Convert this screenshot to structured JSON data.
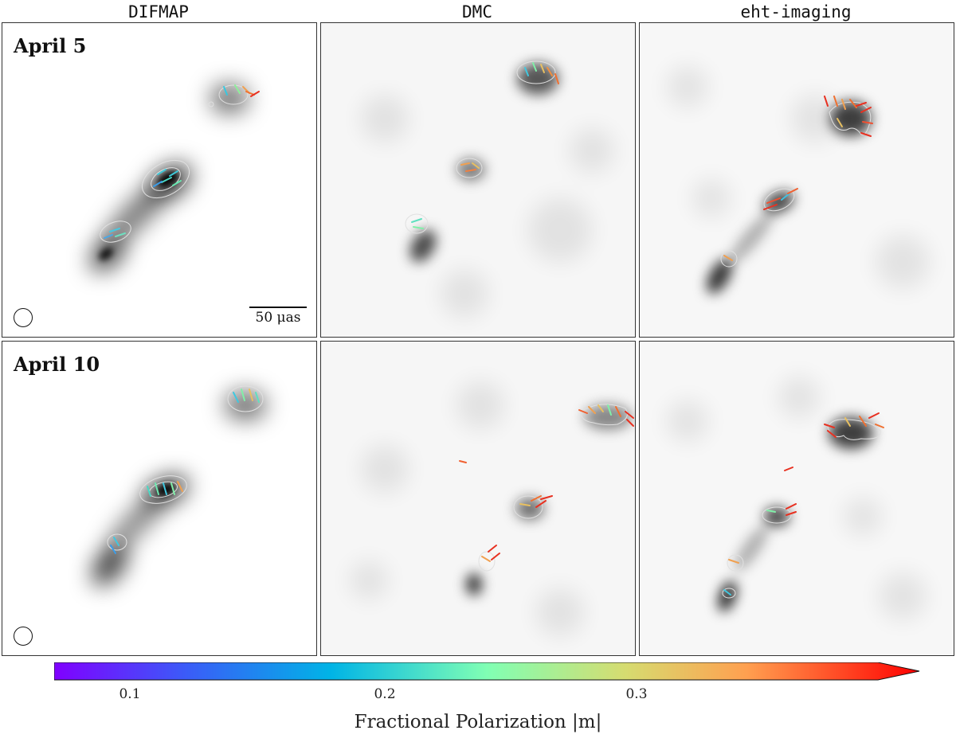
{
  "columns": [
    "DIFMAP",
    "DMC",
    "eht-imaging"
  ],
  "rows": [
    "April 5",
    "April 10"
  ],
  "scalebar_label": "50 μas",
  "colorbar": {
    "label": "Fractional Polarization |m|",
    "ticks": [
      "0.1",
      "0.2",
      "0.3"
    ],
    "tick_values": [
      0.1,
      0.2,
      0.3
    ],
    "range": [
      0.07,
      0.4
    ],
    "colormap": "rainbow",
    "extend": "max"
  },
  "colors": {
    "frame": "#333333",
    "contour": "#dddddd"
  }
}
